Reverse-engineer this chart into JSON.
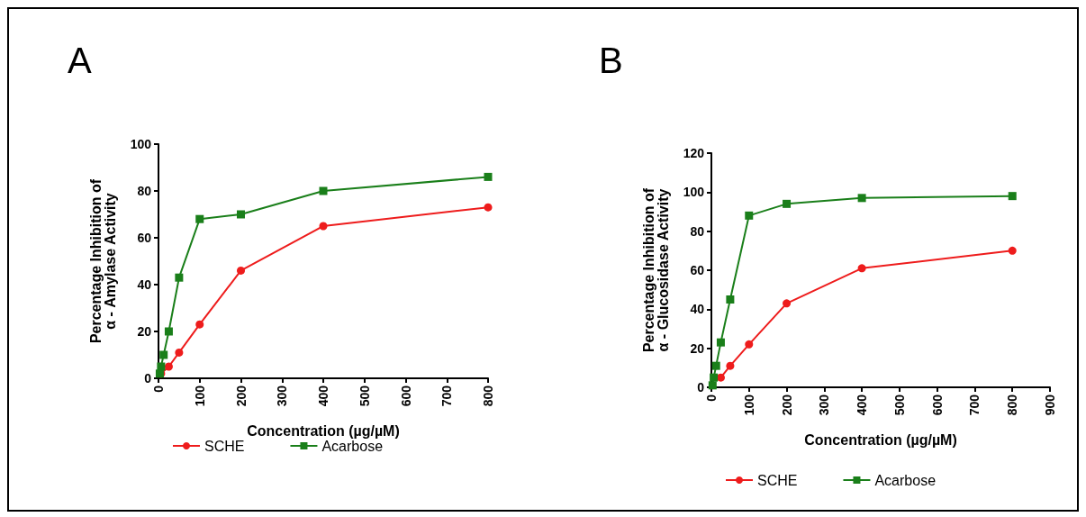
{
  "chart_data": [
    {
      "type": "line",
      "title": "A",
      "xlabel": "Concentration (µg/µM)",
      "ylabel": "Percentage Inhibition of\nα - Amylase Activity",
      "x": [
        3.125,
        6.25,
        12.5,
        25,
        50,
        100,
        200,
        400,
        800
      ],
      "xlim": [
        0,
        800
      ],
      "xticks": [
        0,
        100,
        200,
        300,
        400,
        500,
        600,
        700,
        800
      ],
      "ylim": [
        0,
        100
      ],
      "yticks": [
        0,
        20,
        40,
        60,
        80,
        100
      ],
      "grid": false,
      "legend": "bottom",
      "series": [
        {
          "name": "SCHE",
          "color": "#ee1c1c",
          "marker": "circle",
          "values": [
            null,
            2,
            null,
            5,
            11,
            23,
            46,
            65,
            73
          ]
        },
        {
          "name": "Acarbose",
          "color": "#1a7f1a",
          "marker": "square",
          "values": [
            2,
            5,
            10,
            20,
            43,
            68,
            70,
            80,
            86
          ]
        }
      ]
    },
    {
      "type": "line",
      "title": "B",
      "xlabel": "Concentration (µg/µM)",
      "ylabel": "Percentage Inhibition of\nα - Glucosidase Activity",
      "x": [
        3.125,
        6.25,
        12.5,
        25,
        50,
        100,
        200,
        400,
        800
      ],
      "xlim": [
        0,
        900
      ],
      "xticks": [
        0,
        100,
        200,
        300,
        400,
        500,
        600,
        700,
        800,
        900
      ],
      "ylim": [
        0,
        120
      ],
      "yticks": [
        0,
        20,
        40,
        60,
        80,
        100,
        120
      ],
      "grid": false,
      "legend": "bottom",
      "series": [
        {
          "name": "SCHE",
          "color": "#ee1c1c",
          "marker": "circle",
          "values": [
            null,
            null,
            null,
            5,
            11,
            22,
            43,
            61,
            70
          ]
        },
        {
          "name": "Acarbose",
          "color": "#1a7f1a",
          "marker": "square",
          "values": [
            1,
            5,
            11,
            23,
            45,
            88,
            94,
            97,
            98
          ]
        }
      ]
    }
  ]
}
